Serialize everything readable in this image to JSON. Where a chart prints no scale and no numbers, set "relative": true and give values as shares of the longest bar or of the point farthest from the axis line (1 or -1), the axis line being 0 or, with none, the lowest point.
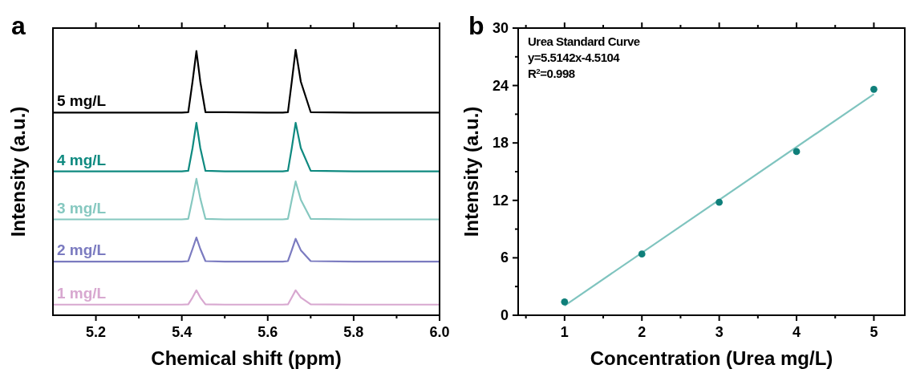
{
  "chart_data": [
    {
      "type": "line",
      "title": "a",
      "xlabel": "Chemical shift (ppm)",
      "ylabel": "Intensity (a.u.)",
      "relative": true,
      "tick_labels": "x",
      "grid": false,
      "xlim": [
        5.1,
        6.0
      ],
      "xticks": [
        5.2,
        5.4,
        5.6,
        5.8,
        {
          "value": 6.0,
          "label": "6.0"
        },
        {
          "value": 5.3,
          "label": null
        },
        {
          "value": 5.5,
          "label": null
        },
        {
          "value": 5.7,
          "label": null
        },
        {
          "value": 5.9,
          "label": null
        }
      ],
      "x": [
        5.1,
        5.2,
        5.3,
        5.4,
        5.415,
        5.425,
        5.434,
        5.443,
        5.455,
        5.5,
        5.6,
        5.635,
        5.647,
        5.656,
        5.665,
        5.677,
        5.7,
        5.8,
        5.9,
        6.0
      ],
      "series": [
        {
          "name": "5 mg/L",
          "color": "#000000",
          "values": [
            0.763,
            0.763,
            0.763,
            0.763,
            0.765,
            0.88,
            0.995,
            0.88,
            0.765,
            0.765,
            0.763,
            0.763,
            0.765,
            0.88,
            1.0,
            0.88,
            0.765,
            0.763,
            0.763,
            0.763
          ]
        },
        {
          "name": "4 mg/L",
          "color": "#0f8a80",
          "values": [
            0.542,
            0.542,
            0.542,
            0.542,
            0.544,
            0.63,
            0.725,
            0.63,
            0.544,
            0.542,
            0.542,
            0.542,
            0.544,
            0.63,
            0.725,
            0.63,
            0.544,
            0.542,
            0.542,
            0.542
          ]
        },
        {
          "name": "3 mg/L",
          "color": "#86c8c0",
          "values": [
            0.361,
            0.361,
            0.361,
            0.361,
            0.363,
            0.44,
            0.514,
            0.44,
            0.363,
            0.361,
            0.361,
            0.361,
            0.363,
            0.435,
            0.504,
            0.435,
            0.363,
            0.361,
            0.361,
            0.361
          ]
        },
        {
          "name": "2 mg/L",
          "color": "#7b7bc0",
          "values": [
            0.202,
            0.202,
            0.202,
            0.202,
            0.204,
            0.25,
            0.293,
            0.25,
            0.204,
            0.202,
            0.202,
            0.202,
            0.204,
            0.245,
            0.288,
            0.245,
            0.204,
            0.202,
            0.202,
            0.202
          ]
        },
        {
          "name": "1 mg/L",
          "color": "#d8a8d0",
          "values": [
            0.04,
            0.04,
            0.04,
            0.04,
            0.041,
            0.067,
            0.094,
            0.067,
            0.041,
            0.04,
            0.04,
            0.04,
            0.041,
            0.067,
            0.094,
            0.067,
            0.041,
            0.04,
            0.04,
            0.04
          ]
        }
      ]
    },
    {
      "type": "scatter",
      "title": "b",
      "xlabel": "Concentration (Urea mg/L)",
      "ylabel": "Intensity (a.u.)",
      "grid": false,
      "marker": "circle",
      "xlim": [
        0.4,
        5.4
      ],
      "ylim": [
        0,
        30
      ],
      "xticks": [
        1,
        2,
        3,
        4,
        5,
        {
          "value": 0.5,
          "label": null
        },
        {
          "value": 1.5,
          "label": null
        },
        {
          "value": 2.5,
          "label": null
        },
        {
          "value": 3.5,
          "label": null
        },
        {
          "value": 4.5,
          "label": null
        }
      ],
      "yticks": [
        0,
        6,
        12,
        18,
        24,
        30,
        {
          "value": 3,
          "label": null
        },
        {
          "value": 9,
          "label": null
        },
        {
          "value": 15,
          "label": null
        },
        {
          "value": 21,
          "label": null
        },
        {
          "value": 27,
          "label": null
        }
      ],
      "annotations": [
        "Urea Standard Curve",
        "y=5.5142x-4.5104",
        "R$^{2}$=0.998"
      ],
      "series": [
        {
          "type": "line",
          "marker": "none",
          "color": "#7fc4bf",
          "x": [
            1,
            5
          ],
          "values": [
            1.0,
            23.1
          ]
        },
        {
          "color": "#0f7f7a",
          "x": [
            1,
            2,
            3,
            4,
            5
          ],
          "values": [
            1.4,
            6.4,
            11.8,
            17.1,
            23.6
          ]
        }
      ]
    }
  ]
}
